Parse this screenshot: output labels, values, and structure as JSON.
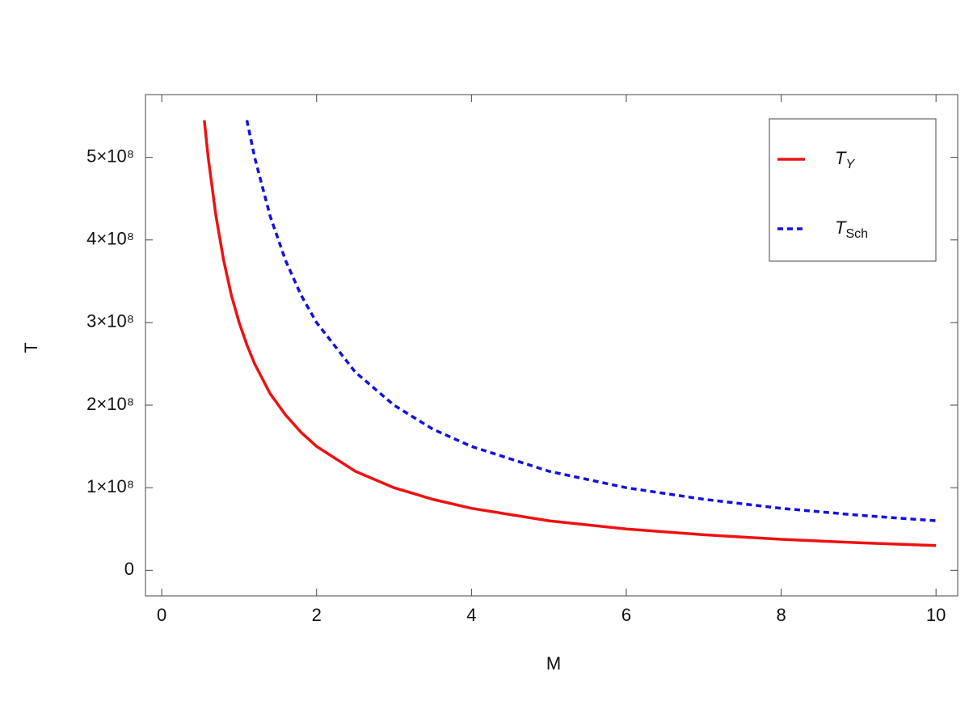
{
  "chart_data": {
    "type": "line",
    "x_label": "M",
    "y_label": "T",
    "x": [
      0.55,
      0.6,
      0.7,
      0.8,
      0.9,
      1.0,
      1.1,
      1.2,
      1.4,
      1.6,
      1.8,
      2,
      2.5,
      3,
      3.5,
      4,
      5,
      6,
      7,
      8,
      9,
      10
    ],
    "series": [
      {
        "name": "T_Y",
        "color": "#ee1111",
        "dash": "solid",
        "values": [
          545000000,
          500000000,
          429000000,
          375000000,
          333000000,
          300000000,
          273000000,
          250000000,
          214000000,
          188000000,
          167000000,
          150000000,
          120000000,
          100000000,
          86000000,
          75000000,
          60000000,
          50000000,
          43000000,
          37500000,
          33300000,
          30000000
        ]
      },
      {
        "name": "T_Sch",
        "color": "#1111dd",
        "dash": "dashed",
        "values": [
          null,
          null,
          null,
          null,
          null,
          null,
          545000000,
          500000000,
          429000000,
          375000000,
          333000000,
          300000000,
          240000000,
          200000000,
          171000000,
          150000000,
          120000000,
          100000000,
          86000000,
          75000000,
          66700000,
          60000000
        ]
      }
    ],
    "xlim": [
      -0.21,
      10.28
    ],
    "ylim": [
      -31000000,
      576000000
    ],
    "xticks": [
      0,
      2,
      4,
      6,
      8,
      10
    ],
    "yticks": [
      0,
      {
        "value": 100000000,
        "label": "1×10⁸"
      },
      {
        "value": 200000000,
        "label": "2×10⁸"
      },
      {
        "value": 300000000,
        "label": "3×10⁸"
      },
      {
        "value": 400000000,
        "label": "4×10⁸"
      },
      {
        "value": 500000000,
        "label": "5×10⁸"
      }
    ],
    "legend": "top-right"
  }
}
